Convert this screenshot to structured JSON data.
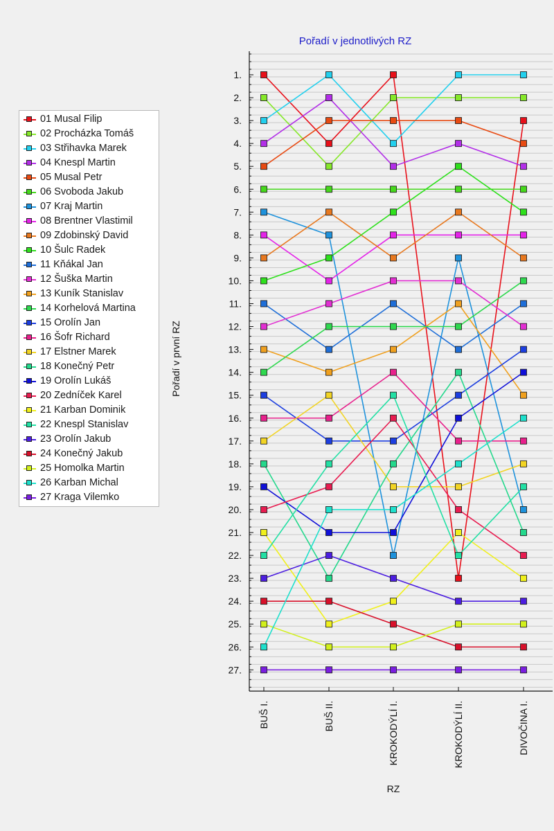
{
  "chart_data": {
    "type": "line",
    "title": "Pořadí v jednotlivých RZ",
    "xlabel": "RZ",
    "ylabel": "Pořadí v první RZ",
    "categories": [
      "BUŠ I.",
      "BUŠ II.",
      "KROKODÝLÍ I.",
      "KROKODÝLÍ II.",
      "DIVOČINA I."
    ],
    "y_tick_labels": [
      "1.",
      "2.",
      "3.",
      "4.",
      "5.",
      "6.",
      "7.",
      "8.",
      "9.",
      "10.",
      "11.",
      "12.",
      "13.",
      "14.",
      "15.",
      "16.",
      "17.",
      "18.",
      "19.",
      "20.",
      "21.",
      "22.",
      "23.",
      "24.",
      "25.",
      "26.",
      "27."
    ],
    "ylim": [
      1,
      27
    ],
    "y_inverted": true,
    "grid": true,
    "legend_position": "left",
    "series": [
      {
        "name": "01 Musal Filip",
        "color": "#e8101a",
        "values": [
          1,
          4,
          1,
          23,
          3
        ]
      },
      {
        "name": "02 Procházka Tomáš",
        "color": "#86e82a",
        "values": [
          2,
          5,
          2,
          2,
          2
        ]
      },
      {
        "name": "03 Střihavka Marek",
        "color": "#22d0ee",
        "values": [
          3,
          1,
          4,
          1,
          1
        ]
      },
      {
        "name": "04 Knespl Martin",
        "color": "#b22ee8",
        "values": [
          4,
          2,
          5,
          4,
          5
        ]
      },
      {
        "name": "05 Musal Petr",
        "color": "#e84a12",
        "values": [
          5,
          3,
          3,
          3,
          4
        ]
      },
      {
        "name": "06 Svoboda Jakub",
        "color": "#46d81c",
        "values": [
          6,
          6,
          6,
          6,
          6
        ]
      },
      {
        "name": "07 Kraj Martin",
        "color": "#1e92dc",
        "values": [
          7,
          8,
          22,
          9,
          20
        ]
      },
      {
        "name": "08 Brentner Vlastimil",
        "color": "#e422e8",
        "values": [
          8,
          10,
          8,
          8,
          8
        ]
      },
      {
        "name": "09 Zdobinský David",
        "color": "#e8781e",
        "values": [
          9,
          7,
          9,
          7,
          9
        ]
      },
      {
        "name": "10 Šulc Radek",
        "color": "#2ee01c",
        "values": [
          10,
          9,
          7,
          5,
          7
        ]
      },
      {
        "name": "11 Kňákal Jan",
        "color": "#1e6ed8",
        "values": [
          11,
          13,
          11,
          13,
          11
        ]
      },
      {
        "name": "12 Šuška Martin",
        "color": "#e22ed2",
        "values": [
          12,
          11,
          10,
          10,
          12
        ]
      },
      {
        "name": "13 Kuník Stanislav",
        "color": "#f0a01e",
        "values": [
          13,
          14,
          13,
          11,
          15
        ]
      },
      {
        "name": "14 Korhelová Martina",
        "color": "#2ed84e",
        "values": [
          14,
          12,
          12,
          12,
          10
        ]
      },
      {
        "name": "15 Orolín Jan",
        "color": "#1c3ee0",
        "values": [
          15,
          17,
          17,
          15,
          13
        ]
      },
      {
        "name": "16 Šofr Richard",
        "color": "#e8208c",
        "values": [
          16,
          16,
          14,
          17,
          17
        ]
      },
      {
        "name": "17 Elstner Marek",
        "color": "#f2d424",
        "values": [
          17,
          15,
          19,
          19,
          18
        ]
      },
      {
        "name": "18 Konečný Petr",
        "color": "#24d88c",
        "values": [
          18,
          23,
          18,
          14,
          21
        ]
      },
      {
        "name": "19 Orolín Lukáš",
        "color": "#1010d8",
        "values": [
          19,
          21,
          21,
          16,
          14
        ]
      },
      {
        "name": "20 Zedníček Karel",
        "color": "#e81c50",
        "values": [
          20,
          19,
          16,
          20,
          22
        ]
      },
      {
        "name": "21 Karban Dominik",
        "color": "#f0f01c",
        "values": [
          21,
          25,
          24,
          21,
          23
        ]
      },
      {
        "name": "22 Knespl Stanislav",
        "color": "#22e0a4",
        "values": [
          22,
          18,
          15,
          22,
          19
        ]
      },
      {
        "name": "23 Orolín Jakub",
        "color": "#4c1ee0",
        "values": [
          23,
          22,
          23,
          24,
          24
        ]
      },
      {
        "name": "24 Konečný Jakub",
        "color": "#d8102a",
        "values": [
          24,
          24,
          25,
          26,
          26
        ]
      },
      {
        "name": "25 Homolka Martin",
        "color": "#d2f01c",
        "values": [
          25,
          26,
          26,
          25,
          25
        ]
      },
      {
        "name": "26 Karban Michal",
        "color": "#1ee0cc",
        "values": [
          26,
          20,
          20,
          18,
          16
        ]
      },
      {
        "name": "27 Kraga Vilemko",
        "color": "#7a1ee0",
        "values": [
          27,
          27,
          27,
          27,
          27
        ]
      }
    ]
  }
}
